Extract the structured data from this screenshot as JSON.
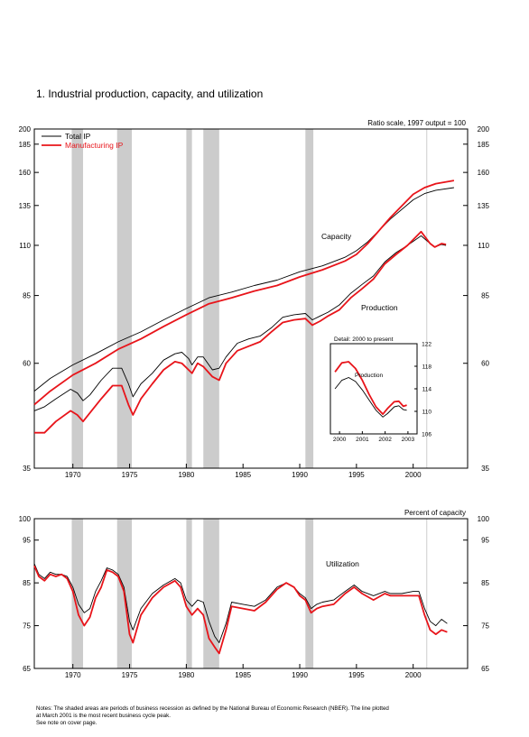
{
  "figure_title": "1.  Industrial production, capacity, and utilization",
  "notes": [
    "Notes: The shaded areas are periods of business recession as defined by the National Bureau of Economic Research (NBER). The line plotted",
    "at March 2001 is the most recent business cycle peak.",
    "See note on cover page."
  ],
  "colors": {
    "total": "#000000",
    "manufacturing": "#e8141a",
    "recession": "#cccccc",
    "peak_line": "#cccccc"
  },
  "chart_data": [
    {
      "type": "line",
      "panel": "top",
      "scale": "log",
      "unit_label": "Ratio scale, 1997 output = 100",
      "ylim": [
        35,
        200
      ],
      "yticks": [
        35,
        60,
        85,
        110,
        135,
        160,
        185,
        200
      ],
      "xlim": [
        1966.6,
        2004.8
      ],
      "xticks": [
        1970,
        1975,
        1980,
        1985,
        1990,
        1995,
        2000
      ],
      "recessions": [
        [
          1969.9,
          1970.9
        ],
        [
          1973.9,
          1975.2
        ],
        [
          1980.0,
          1980.5
        ],
        [
          1981.5,
          1982.9
        ],
        [
          1990.5,
          1991.2
        ]
      ],
      "peak_line": 2001.2,
      "legend": [
        "Total IP",
        "Manufacturing IP"
      ],
      "annotations": {
        "capacity": "Capacity",
        "production": "Production"
      },
      "series": [
        {
          "name": "Capacity",
          "legend_ref": "Total IP",
          "x": [
            1966.6,
            1968,
            1970,
            1972,
            1974,
            1976,
            1978,
            1980,
            1982,
            1984,
            1986,
            1988,
            1990,
            1992,
            1994,
            1995,
            1996,
            1998,
            2000,
            2001,
            2002,
            2003.6
          ],
          "y": [
            52,
            55.5,
            59.5,
            63,
            67,
            70.5,
            75,
            79.5,
            84,
            86.5,
            89.5,
            92,
            96,
            99,
            103.5,
            107,
            112,
            126,
            139,
            143.5,
            146,
            148
          ]
        },
        {
          "name": "Capacity",
          "legend_ref": "Manufacturing IP",
          "x": [
            1966.6,
            1968,
            1970,
            1972,
            1974,
            1976,
            1978,
            1980,
            1982,
            1984,
            1986,
            1988,
            1990,
            1992,
            1994,
            1995,
            1996,
            1998,
            2000,
            2001,
            2002,
            2003.6
          ],
          "y": [
            48.5,
            52,
            56.5,
            60,
            64.5,
            68,
            72.5,
            77,
            81.5,
            84,
            87,
            89.5,
            93.5,
            97,
            101.5,
            105,
            111,
            127,
            143,
            148,
            151,
            153.5
          ]
        },
        {
          "name": "Production",
          "legend_ref": "Total IP",
          "x": [
            1966.6,
            1967.5,
            1968.5,
            1969.8,
            1970.4,
            1970.9,
            1971.5,
            1972.5,
            1973.5,
            1974.3,
            1974.9,
            1975.3,
            1976,
            1977,
            1978,
            1979,
            1979.6,
            1980.2,
            1980.5,
            1981,
            1981.5,
            1982.3,
            1982.9,
            1983.5,
            1984.5,
            1985.5,
            1986.5,
            1987.5,
            1988.5,
            1989.5,
            1990.5,
            1991.1,
            1991.8,
            1992.5,
            1993.5,
            1994.5,
            1995.5,
            1996.5,
            1997.5,
            1998.5,
            1999.5,
            2000.7,
            2001.5,
            2001.9,
            2002.5,
            2002.9
          ],
          "y": [
            47,
            48,
            50,
            52.5,
            51.5,
            49.5,
            51,
            55,
            58.5,
            58.5,
            54,
            50.5,
            54,
            57,
            61,
            63,
            63.5,
            61.5,
            59.5,
            62,
            62,
            58,
            58.5,
            62,
            66.5,
            68,
            69,
            72,
            76,
            77,
            77.5,
            75,
            76.5,
            78,
            81,
            86,
            90,
            94,
            101,
            106,
            110,
            115.5,
            111,
            109,
            110.5,
            110
          ]
        },
        {
          "name": "Production",
          "legend_ref": "Manufacturing IP",
          "x": [
            1966.6,
            1967.5,
            1968.5,
            1969.8,
            1970.4,
            1970.9,
            1971.5,
            1972.5,
            1973.5,
            1974.3,
            1974.9,
            1975.3,
            1976,
            1977,
            1978,
            1979,
            1979.6,
            1980.2,
            1980.5,
            1981,
            1981.5,
            1982.3,
            1982.9,
            1983.5,
            1984.5,
            1985.5,
            1986.5,
            1987.5,
            1988.5,
            1989.5,
            1990.5,
            1991.1,
            1991.8,
            1992.5,
            1993.5,
            1994.5,
            1995.5,
            1996.5,
            1997.5,
            1998.5,
            1999.5,
            2000.7,
            2001.5,
            2001.9,
            2002.5,
            2002.9
          ],
          "y": [
            42,
            42,
            44.5,
            47,
            46,
            44.5,
            46.5,
            50,
            53.5,
            53.5,
            48.5,
            46,
            50,
            54,
            58,
            60.5,
            60,
            58,
            57,
            60,
            59,
            56,
            55,
            60,
            64,
            65.5,
            67,
            70.5,
            74,
            75,
            75.5,
            73,
            74.5,
            76.5,
            79,
            84,
            88,
            92.5,
            100,
            105,
            110,
            118,
            111,
            109,
            111,
            110.5
          ]
        }
      ],
      "inset": {
        "type": "line",
        "title": "Detail: 2000 to present",
        "label": "Production",
        "ylim": [
          106,
          122
        ],
        "yticks": [
          106,
          110,
          114,
          118,
          122
        ],
        "xlim": [
          1999.6,
          2003.4
        ],
        "xticks": [
          2000,
          2001,
          2002,
          2003
        ],
        "series": [
          {
            "name": "Total IP",
            "x": [
              1999.8,
              2000.1,
              2000.4,
              2000.7,
              2001.0,
              2001.3,
              2001.6,
              2001.9,
              2002.1,
              2002.4,
              2002.6,
              2002.8,
              2002.95
            ],
            "y": [
              114,
              115.5,
              116,
              115.3,
              113.8,
              112,
              110.2,
              109,
              109.6,
              110.8,
              111,
              110.3,
              110.2
            ]
          },
          {
            "name": "Manufacturing IP",
            "x": [
              1999.8,
              2000.1,
              2000.4,
              2000.7,
              2001.0,
              2001.3,
              2001.6,
              2001.9,
              2002.1,
              2002.4,
              2002.6,
              2002.8,
              2002.95
            ],
            "y": [
              117,
              118.6,
              118.8,
              117.6,
              115.5,
              113,
              110.8,
              109.5,
              110.5,
              111.7,
              111.8,
              110.9,
              111.1
            ]
          }
        ]
      }
    },
    {
      "type": "line",
      "panel": "bottom",
      "unit_label": "Percent of capacity",
      "annotation": "Utilization",
      "ylim": [
        65,
        100
      ],
      "yticks": [
        65,
        75,
        85,
        95,
        100
      ],
      "xlim": [
        1966.6,
        2004.8
      ],
      "xticks": [
        1970,
        1975,
        1980,
        1985,
        1990,
        1995,
        2000
      ],
      "recessions": [
        [
          1969.9,
          1970.9
        ],
        [
          1973.9,
          1975.2
        ],
        [
          1980.0,
          1980.5
        ],
        [
          1981.5,
          1982.9
        ],
        [
          1990.5,
          1991.2
        ]
      ],
      "peak_line": 2001.2,
      "series": [
        {
          "name": "Total IP",
          "x": [
            1966.6,
            1967,
            1967.5,
            1968,
            1968.5,
            1969,
            1969.5,
            1970,
            1970.5,
            1971,
            1971.5,
            1972,
            1972.5,
            1973,
            1973.5,
            1974,
            1974.5,
            1975,
            1975.3,
            1976,
            1977,
            1978,
            1979,
            1979.5,
            1980,
            1980.5,
            1981,
            1981.5,
            1982,
            1982.5,
            1982.9,
            1983.5,
            1984,
            1985,
            1986,
            1987,
            1988,
            1988.8,
            1989.5,
            1990,
            1990.5,
            1991,
            1991.5,
            1992,
            1993,
            1994,
            1994.8,
            1995.5,
            1996.5,
            1997.5,
            1998,
            1999,
            2000,
            2000.5,
            2001,
            2001.5,
            2002,
            2002.5,
            2003
          ],
          "y": [
            89.5,
            87,
            86,
            87.5,
            87,
            87,
            86.5,
            84,
            80,
            78,
            79,
            83,
            85.5,
            88.5,
            88,
            87,
            84,
            76,
            74,
            79,
            82.5,
            84.5,
            86,
            85,
            81,
            79.5,
            81,
            80.5,
            76,
            72.5,
            71,
            75.5,
            80.5,
            80,
            79.5,
            81,
            84,
            85,
            84,
            82.5,
            81.5,
            79,
            80,
            80.5,
            81,
            83,
            84.5,
            83,
            82,
            83,
            82.5,
            82.5,
            83,
            83,
            79,
            76,
            75,
            76.5,
            75.5
          ]
        },
        {
          "name": "Manufacturing IP",
          "x": [
            1966.6,
            1967,
            1967.5,
            1968,
            1968.5,
            1969,
            1969.5,
            1970,
            1970.5,
            1971,
            1971.5,
            1972,
            1972.5,
            1973,
            1973.5,
            1974,
            1974.5,
            1975,
            1975.3,
            1976,
            1977,
            1978,
            1979,
            1979.5,
            1980,
            1980.5,
            1981,
            1981.5,
            1982,
            1982.5,
            1982.9,
            1983.5,
            1984,
            1985,
            1986,
            1987,
            1988,
            1988.8,
            1989.5,
            1990,
            1990.5,
            1991,
            1991.5,
            1992,
            1993,
            1994,
            1994.8,
            1995.5,
            1996.5,
            1997.5,
            1998,
            1999,
            2000,
            2000.5,
            2001,
            2001.5,
            2002,
            2002.5,
            2003
          ],
          "y": [
            89,
            86.5,
            85.5,
            87,
            86.5,
            87,
            86,
            83,
            77.5,
            75,
            77,
            81.5,
            84,
            88,
            87.5,
            86.5,
            83,
            73,
            71,
            77.5,
            81.5,
            84,
            85.5,
            84,
            79.5,
            77.5,
            79,
            77.5,
            72,
            70,
            68.5,
            74,
            79.5,
            79,
            78.5,
            80.5,
            83.5,
            85,
            84,
            82,
            81,
            78,
            79,
            79.5,
            80,
            82.5,
            84,
            82.5,
            81,
            82.5,
            82,
            82,
            82,
            82,
            77.5,
            74,
            73,
            74,
            73.5
          ]
        }
      ]
    }
  ]
}
